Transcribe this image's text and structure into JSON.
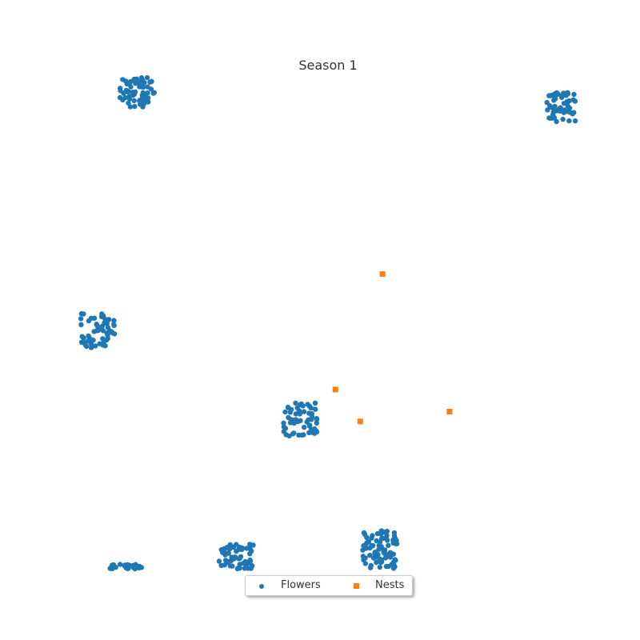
{
  "chart_data": {
    "type": "scatter",
    "title": "Season 1",
    "xlabel": "",
    "ylabel": "",
    "xlim": [
      0,
      100
    ],
    "ylim": [
      0,
      100
    ],
    "grid": false,
    "legend_position": "bottom-center",
    "series": [
      {
        "name": "Flowers",
        "color": "#1f77b4",
        "marker": "circle",
        "clusters": [
          {
            "x_range": [
              8,
              15
            ],
            "y_range": [
              94,
              100
            ],
            "count": 70
          },
          {
            "x_range": [
              94,
              100
            ],
            "y_range": [
              91,
              97
            ],
            "count": 55
          },
          {
            "x_range": [
              0,
              7
            ],
            "y_range": [
              45,
              52
            ],
            "count": 60
          },
          {
            "x_range": [
              41,
              48
            ],
            "y_range": [
              27,
              34
            ],
            "count": 60
          },
          {
            "x_range": [
              28,
              35
            ],
            "y_range": [
              0,
              5
            ],
            "count": 55
          },
          {
            "x_range": [
              57,
              64
            ],
            "y_range": [
              0,
              8
            ],
            "count": 80
          },
          {
            "x_range": [
              6,
              13
            ],
            "y_range": [
              0,
              1
            ],
            "count": 25
          }
        ]
      },
      {
        "name": "Nests",
        "color": "#ff7f0e",
        "marker": "square",
        "points": [
          {
            "x": 61,
            "y": 60
          },
          {
            "x": 51.5,
            "y": 36.5
          },
          {
            "x": 56.5,
            "y": 30
          },
          {
            "x": 74.5,
            "y": 32
          }
        ]
      }
    ]
  }
}
